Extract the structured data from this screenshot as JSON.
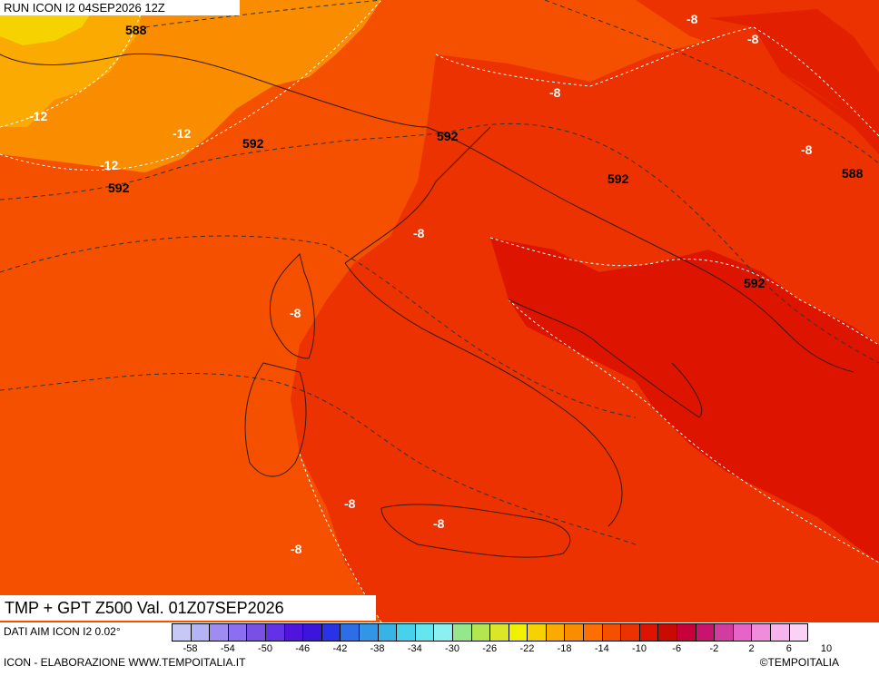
{
  "run_label": "RUN ICON I2 04SEP2026 12Z",
  "map_title": "TMP + GPT Z500 Val. 01Z07SEP2026",
  "footer": {
    "data_source": "DATI AIM ICON I2 0.02°",
    "credit": "ICON - ELABORAZIONE WWW.TEMPOITALIA.IT",
    "copyright": "©TEMPOITALIA"
  },
  "legend": {
    "colors": [
      "#c8c8f4",
      "#b4b4f4",
      "#a08cf0",
      "#8c6ef0",
      "#7850e6",
      "#6432e6",
      "#5014dc",
      "#3c14dc",
      "#2832e6",
      "#2d6ee6",
      "#3296e6",
      "#37b4e6",
      "#46d2eb",
      "#64e6f0",
      "#8cf0f0",
      "#96e68c",
      "#b4e650",
      "#dce628",
      "#f0f000",
      "#f5d200",
      "#faaa00",
      "#fa8c00",
      "#ff6e00",
      "#f55000",
      "#eb3200",
      "#dc1400",
      "#c80a00",
      "#c8003c",
      "#c8146e",
      "#d23ca0",
      "#e664c8",
      "#f08cdc",
      "#f5b4eb",
      "#fad2f5"
    ],
    "tick_labels": [
      "-58",
      "-54",
      "-50",
      "-46",
      "-42",
      "-38",
      "-34",
      "-30",
      "-26",
      "-22",
      "-18",
      "-14",
      "-10",
      "-6",
      "-2",
      "2",
      "6",
      "10"
    ]
  },
  "map": {
    "geopotential_labels": [
      "588",
      "592",
      "592",
      "592",
      "592",
      "592",
      "588"
    ],
    "temperature_labels": [
      "-12",
      "-12",
      "-12",
      "-8",
      "-8",
      "-8",
      "-8",
      "-8",
      "-8",
      "-8",
      "-8",
      "-8",
      "-8"
    ]
  }
}
